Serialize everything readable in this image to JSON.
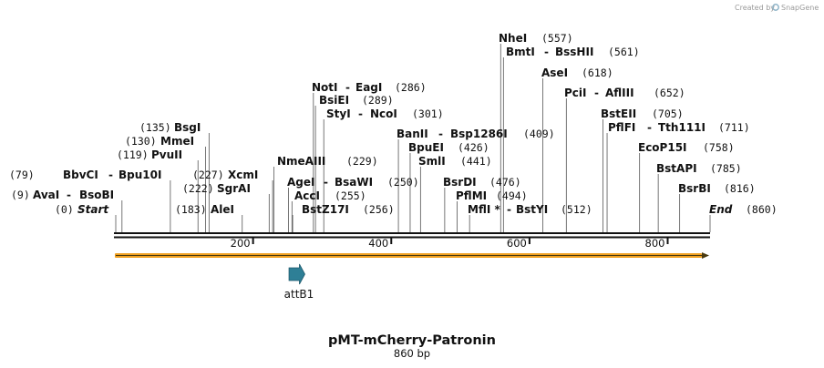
{
  "credit": {
    "prefix": "Created by",
    "brand": "SnapGene"
  },
  "map": {
    "title": "pMT-mCherry-Patronin",
    "length_label": "860 bp",
    "length": 860,
    "ruler_ticks": [
      200,
      400,
      600,
      800
    ],
    "feature": {
      "name": "attB1",
      "start": 252,
      "end": 275,
      "color": "#2e7f96"
    },
    "orf_color": "#f0a020"
  },
  "sites": [
    {
      "pos": "(0)",
      "name": "Start",
      "italic": true
    },
    {
      "pos": "(9)",
      "name": "AvaI",
      "name2": "BsoBI"
    },
    {
      "pos": "(79)",
      "name": "BbvCI",
      "name2": "Bpu10I"
    },
    {
      "pos": "(119)",
      "name": "PvuII"
    },
    {
      "pos": "(130)",
      "name": "MmeI"
    },
    {
      "pos": "(135)",
      "name": "BsgI"
    },
    {
      "pos": "(183)",
      "name": "AleI"
    },
    {
      "pos": "(222)",
      "name": "SgrAI"
    },
    {
      "pos": "(227)",
      "name": "XcmI"
    },
    {
      "pos": "(229)",
      "name": "NmeAIII"
    },
    {
      "pos": "(250)",
      "name": "AgeI",
      "name2": "BsaWI"
    },
    {
      "pos": "(255)",
      "name": "AccI"
    },
    {
      "pos": "(256)",
      "name": "BstZ17I"
    },
    {
      "pos": "(286)",
      "name": "NotI",
      "name2": "EagI"
    },
    {
      "pos": "(289)",
      "name": "BsiEI"
    },
    {
      "pos": "(301)",
      "name": "StyI",
      "name2": "NcoI"
    },
    {
      "pos": "(409)",
      "name": "BanII",
      "name2": "Bsp1286I"
    },
    {
      "pos": "(426)",
      "name": "BpuEI"
    },
    {
      "pos": "(441)",
      "name": "SmlI"
    },
    {
      "pos": "(476)",
      "name": "BsrDI"
    },
    {
      "pos": "(494)",
      "name": "PflMI"
    },
    {
      "pos": "(512)",
      "name": "MflI *",
      "name2": "BstYI"
    },
    {
      "pos": "(557)",
      "name": "NheI"
    },
    {
      "pos": "(561)",
      "name": "BmtI",
      "name2": "BssHII"
    },
    {
      "pos": "(618)",
      "name": "AseI"
    },
    {
      "pos": "(652)",
      "name": "PciI",
      "name2": "AflIII"
    },
    {
      "pos": "(705)",
      "name": "BstEII"
    },
    {
      "pos": "(711)",
      "name": "PflFI",
      "name2": "Tth111I"
    },
    {
      "pos": "(758)",
      "name": "EcoP15I"
    },
    {
      "pos": "(785)",
      "name": "BstAPI"
    },
    {
      "pos": "(816)",
      "name": "BsrBI"
    },
    {
      "pos": "(860)",
      "name": "End",
      "italic": true
    }
  ]
}
